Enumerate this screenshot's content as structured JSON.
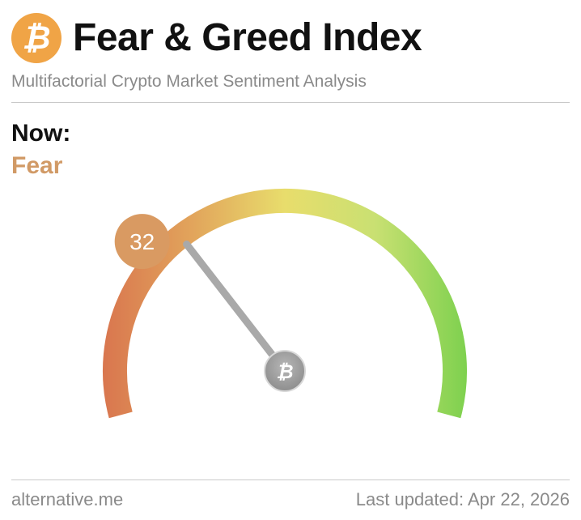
{
  "header": {
    "title": "Fear & Greed Index",
    "subtitle": "Multifactorial Crypto Market Sentiment Analysis",
    "logo_glyph": "₿"
  },
  "reading": {
    "now_label": "Now:",
    "status": "Fear",
    "value": 32,
    "value_text": "32",
    "scale_min": 0,
    "scale_max": 100
  },
  "footer": {
    "source": "alternative.me",
    "last_updated": "Last updated: Apr 22, 2026"
  },
  "colors": {
    "logo": "#f0a446",
    "status": "#d19a66",
    "value_badge": "#d99a62",
    "gauge_fear": "#d9774f",
    "gauge_neutral": "#e8e06a",
    "gauge_greed": "#7fd14f",
    "needle": "#a9a9a9",
    "hub": "#9c9c9c"
  },
  "icons": {
    "logo": "bitcoin-icon",
    "hub": "bitcoin-icon"
  }
}
